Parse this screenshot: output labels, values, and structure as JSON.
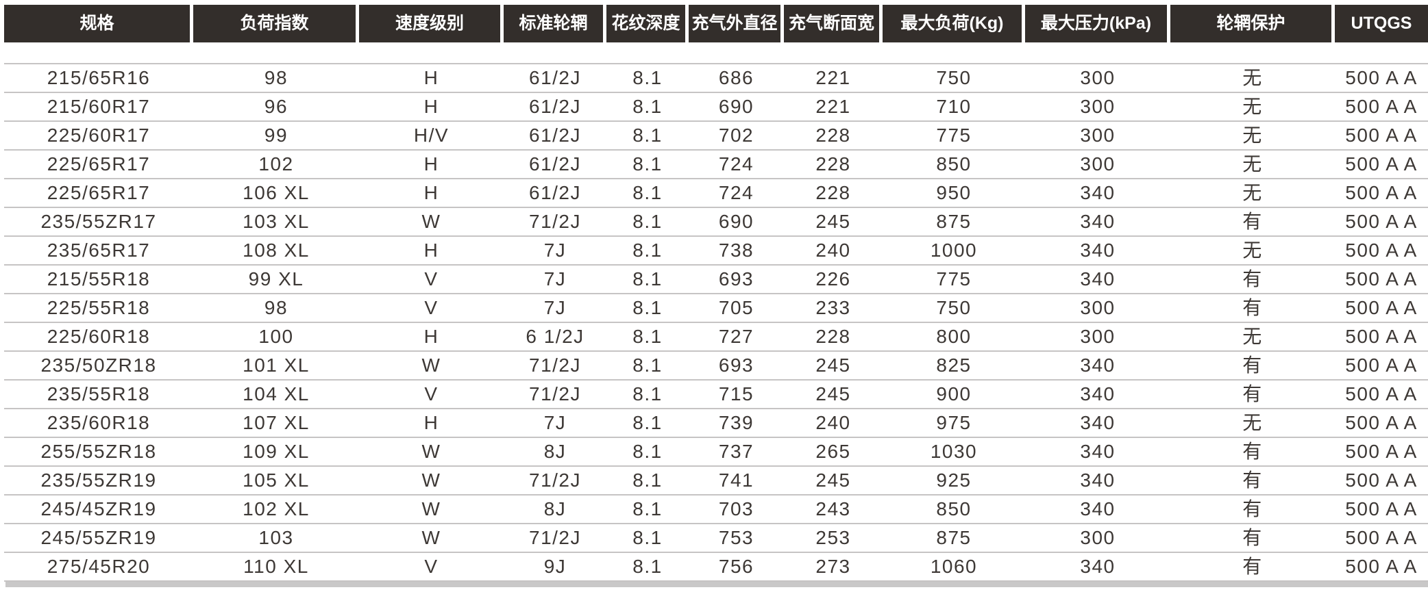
{
  "chart_data": {
    "type": "table",
    "title": "",
    "columns": [
      "规格",
      "负荷指数",
      "速度级别",
      "标准轮辋",
      "花纹深度",
      "充气外直径",
      "充气断面宽",
      "最大负荷(Kg)",
      "最大压力(kPa)",
      "轮辋保护",
      "UTQGS"
    ],
    "rows": [
      [
        "215/65R16",
        "98",
        "H",
        "61/2J",
        "8.1",
        "686",
        "221",
        "750",
        "300",
        "无",
        "500 A A"
      ],
      [
        "215/60R17",
        "96",
        "H",
        "61/2J",
        "8.1",
        "690",
        "221",
        "710",
        "300",
        "无",
        "500 A A"
      ],
      [
        "225/60R17",
        "99",
        "H/V",
        "61/2J",
        "8.1",
        "702",
        "228",
        "775",
        "300",
        "无",
        "500 A A"
      ],
      [
        "225/65R17",
        "102",
        "H",
        "61/2J",
        "8.1",
        "724",
        "228",
        "850",
        "300",
        "无",
        "500 A A"
      ],
      [
        "225/65R17",
        "106 XL",
        "H",
        "61/2J",
        "8.1",
        "724",
        "228",
        "950",
        "340",
        "无",
        "500 A A"
      ],
      [
        "235/55ZR17",
        "103 XL",
        "W",
        "71/2J",
        "8.1",
        "690",
        "245",
        "875",
        "340",
        "有",
        "500 A A"
      ],
      [
        "235/65R17",
        "108 XL",
        "H",
        "7J",
        "8.1",
        "738",
        "240",
        "1000",
        "340",
        "无",
        "500 A A"
      ],
      [
        "215/55R18",
        "99 XL",
        "V",
        "7J",
        "8.1",
        "693",
        "226",
        "775",
        "340",
        "有",
        "500 A A"
      ],
      [
        "225/55R18",
        "98",
        "V",
        "7J",
        "8.1",
        "705",
        "233",
        "750",
        "300",
        "有",
        "500 A A"
      ],
      [
        "225/60R18",
        "100",
        "H",
        "6 1/2J",
        "8.1",
        "727",
        "228",
        "800",
        "300",
        "无",
        "500 A A"
      ],
      [
        "235/50ZR18",
        "101 XL",
        "W",
        "71/2J",
        "8.1",
        "693",
        "245",
        "825",
        "340",
        "有",
        "500 A A"
      ],
      [
        "235/55R18",
        "104 XL",
        "V",
        "71/2J",
        "8.1",
        "715",
        "245",
        "900",
        "340",
        "有",
        "500 A A"
      ],
      [
        "235/60R18",
        "107 XL",
        "H",
        "7J",
        "8.1",
        "739",
        "240",
        "975",
        "340",
        "无",
        "500 A A"
      ],
      [
        "255/55ZR18",
        "109 XL",
        "W",
        "8J",
        "8.1",
        "737",
        "265",
        "1030",
        "340",
        "有",
        "500 A A"
      ],
      [
        "235/55ZR19",
        "105 XL",
        "W",
        "71/2J",
        "8.1",
        "741",
        "245",
        "925",
        "340",
        "有",
        "500 A A"
      ],
      [
        "245/45ZR19",
        "102 XL",
        "W",
        "8J",
        "8.1",
        "703",
        "243",
        "850",
        "340",
        "有",
        "500 A A"
      ],
      [
        "245/55ZR19",
        "103",
        "W",
        "71/2J",
        "8.1",
        "753",
        "253",
        "875",
        "300",
        "有",
        "500 A A"
      ],
      [
        "275/45R20",
        "110 XL",
        "V",
        "9J",
        "8.1",
        "756",
        "273",
        "1060",
        "340",
        "有",
        "500 A A"
      ]
    ],
    "layout": {
      "header_position": "top",
      "grid": "horizontal-lines-only"
    }
  },
  "colors": {
    "header_bg": "#332e2b",
    "header_text": "#ffffff",
    "body_text": "#3d3835",
    "row_line": "#c6c4c4",
    "bottom_bar": "#c9c8c8"
  }
}
